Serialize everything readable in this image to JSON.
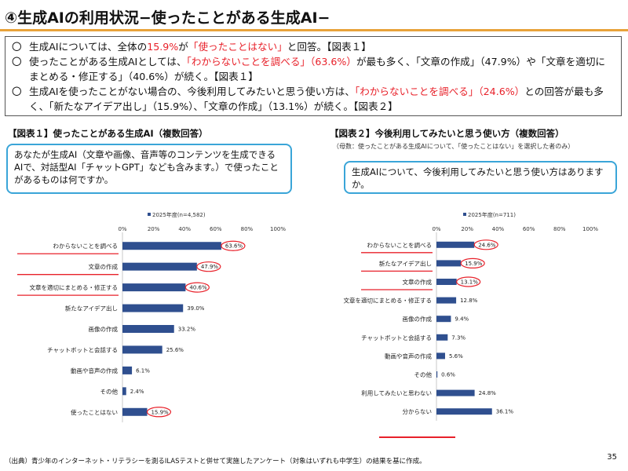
{
  "title": "④生成AIの利用状況−使ったことがある生成AI−",
  "summary": {
    "bullet_mark": "〇",
    "b1": {
      "p1": "生成AIについては、全体の",
      "r1": "15.9%",
      "p2": "が",
      "r2": "「使ったことはない」",
      "p3": "と回答。【図表１】"
    },
    "b2": {
      "p1": "使ったことがある生成AIとしては、",
      "r1": "「わからないことを調べる」（63.6%）",
      "p2": "が最も多く、「文章の作成」（47.9%）や「文章を適切にまとめる・修正する」（40.6%）が続く。【図表１】"
    },
    "b3": {
      "p1": "生成AIを使ったことがない場合の、今後利用してみたいと思う使い方は、",
      "r1": "「わからないことを調べる」（24.6%）",
      "p2": "との回答が最も多く、「新たなアイデア出し」（15.9%）、「文章の作成」（13.1%）が続く。【図表２】"
    }
  },
  "fig1": {
    "title": "【図表１】使ったことがある生成AI（複数回答）",
    "question": "あなたが生成AI（文章や画像、音声等のコンテンツを生成できるAIで、対話型AI「チャットGPT」なども含みます。）で使ったことがあるものは何ですか。"
  },
  "fig2": {
    "title": "【図表２】今後利用してみたいと思う使い方（複数回答）",
    "subtitle": "（母数：使ったことがある生成AIについて、「使ったことはない」を選択した者のみ）",
    "question": "生成AIについて、今後利用してみたいと思う使い方はありますか。"
  },
  "chart_data": [
    {
      "type": "bar",
      "orientation": "horizontal",
      "legend": "2025年度(n=4,582)",
      "categories": [
        "わからないことを調べる",
        "文章の作成",
        "文章を適切にまとめる・修正する",
        "新たなアイデア出し",
        "画像の作成",
        "チャットボットと会話する",
        "動画や音声の作成",
        "その他",
        "使ったことはない"
      ],
      "values": [
        63.6,
        47.9,
        40.6,
        39.0,
        33.2,
        25.6,
        6.1,
        2.4,
        15.9
      ],
      "value_labels": [
        "63.6%",
        "47.9%",
        "40.6%",
        "39.0%",
        "33.2%",
        "25.6%",
        "6.1%",
        "2.4%",
        "15.9%"
      ],
      "xticks": [
        "0%",
        "20%",
        "40%",
        "60%",
        "80%",
        "100%"
      ],
      "xlim": [
        0,
        100
      ],
      "highlighted_values": [
        "63.6%",
        "47.9%",
        "40.6%",
        "15.9%"
      ],
      "highlighted_categories": [
        "わからないことを調べる",
        "文章の作成",
        "文章を適切にまとめる・修正する"
      ],
      "bar_color": "#2f4f8f",
      "highlight_color": "#e8212a"
    },
    {
      "type": "bar",
      "orientation": "horizontal",
      "legend": "2025年度(n=711)",
      "categories": [
        "わからないことを調べる",
        "新たなアイデア出し",
        "文章の作成",
        "文章を適切にまとめる・修正する",
        "画像の作成",
        "チャットボットと会話する",
        "動画や音声の作成",
        "その他",
        "利用してみたいと思わない",
        "分からない"
      ],
      "values": [
        24.6,
        15.9,
        13.1,
        12.8,
        9.4,
        7.3,
        5.6,
        0.6,
        24.8,
        36.1
      ],
      "value_labels": [
        "24.6%",
        "15.9%",
        "13.1%",
        "12.8%",
        "9.4%",
        "7.3%",
        "5.6%",
        "0.6%",
        "24.8%",
        "36.1%"
      ],
      "xticks": [
        "0%",
        "20%",
        "40%",
        "60%",
        "80%",
        "100%"
      ],
      "xlim": [
        0,
        100
      ],
      "highlighted_values": [
        "24.6%",
        "15.9%",
        "13.1%"
      ],
      "highlighted_categories": [
        "わからないことを調べる",
        "新たなアイデア出し",
        "文章の作成"
      ],
      "bar_color": "#2f4f8f",
      "highlight_color": "#e8212a"
    }
  ],
  "footer": "（出典）青少年のインターネット・リテラシーを測るILASテストと併せて実施したアンケート（対象はいずれも中学生）の結果を基に作成。",
  "page_number": "35"
}
